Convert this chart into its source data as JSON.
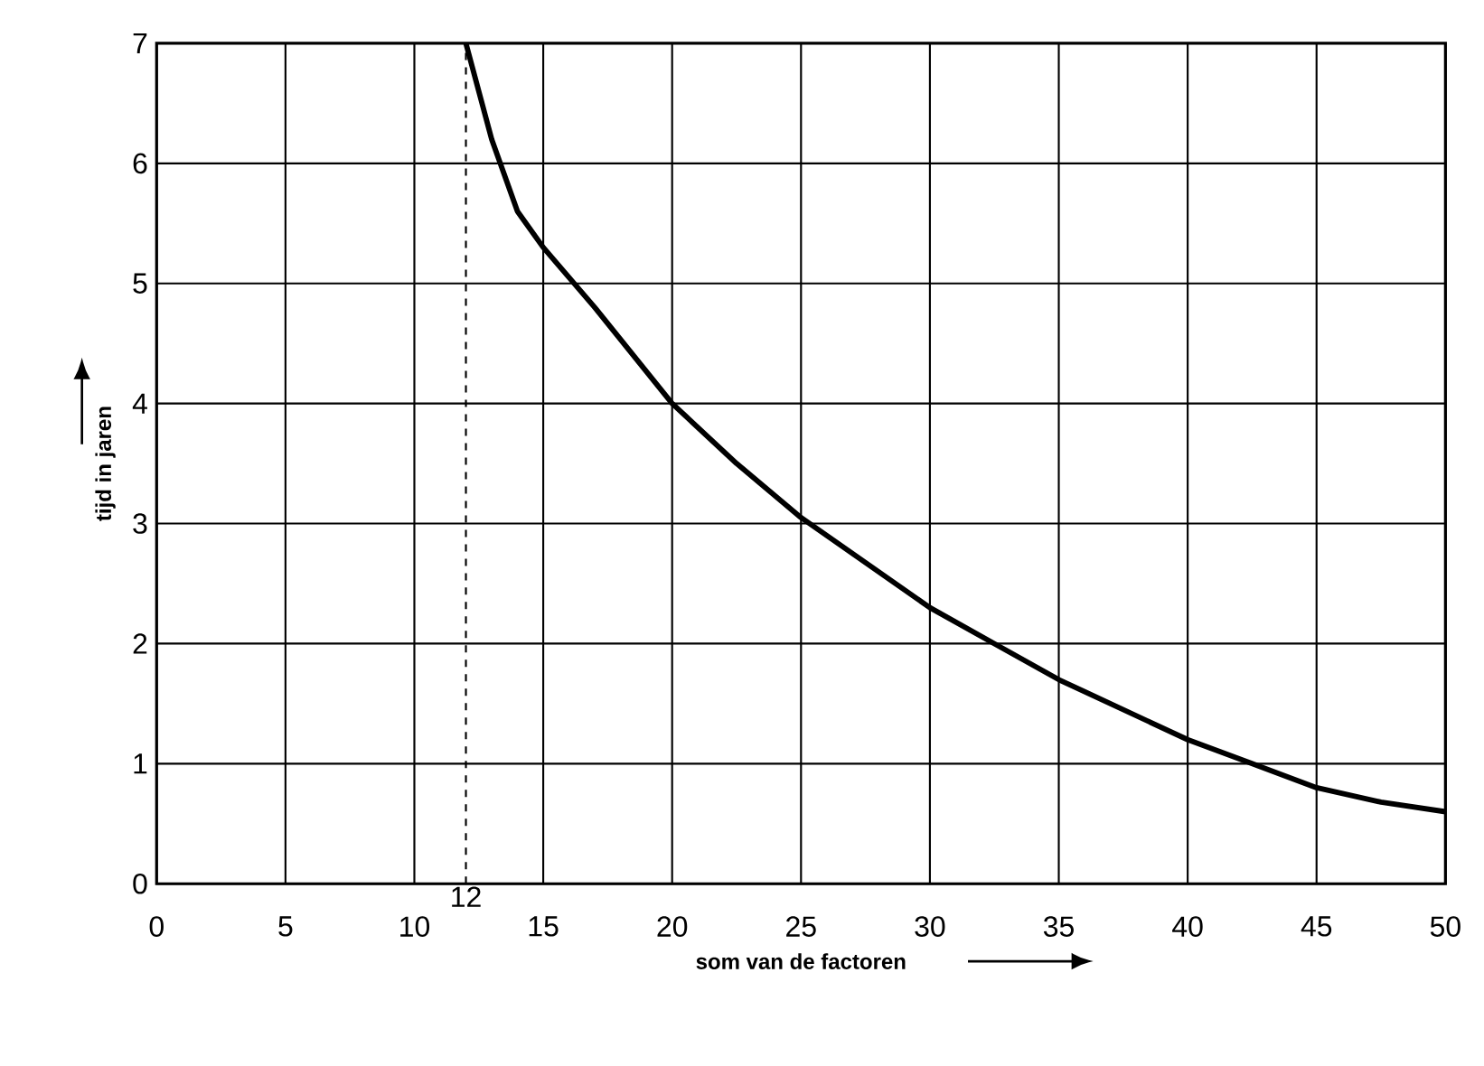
{
  "chart_data": {
    "type": "line",
    "xlabel": "som van de factoren",
    "ylabel": "tijd in jaren",
    "x": [
      12,
      13,
      14,
      15,
      17,
      20,
      22.5,
      25,
      30,
      32.5,
      35,
      40,
      42.5,
      45,
      47.5,
      50
    ],
    "values": [
      7,
      6.2,
      5.6,
      5.3,
      4.8,
      4.0,
      3.5,
      3.05,
      2.3,
      2.0,
      1.7,
      1.2,
      1.0,
      0.8,
      0.68,
      0.6
    ],
    "color": "#000000",
    "xlim": [
      0,
      50
    ],
    "ylim": [
      0,
      7
    ],
    "xticks": [
      0,
      5,
      10,
      15,
      20,
      25,
      30,
      35,
      40,
      45,
      50
    ],
    "yticks": [
      0,
      1,
      2,
      3,
      4,
      5,
      6,
      7
    ],
    "grid": true,
    "marker": "none",
    "line_style": "solid",
    "ref_lines": [
      {
        "axis": "x",
        "value": 12,
        "label": "12",
        "line_style": "dashed",
        "color": "#000000"
      }
    ]
  }
}
